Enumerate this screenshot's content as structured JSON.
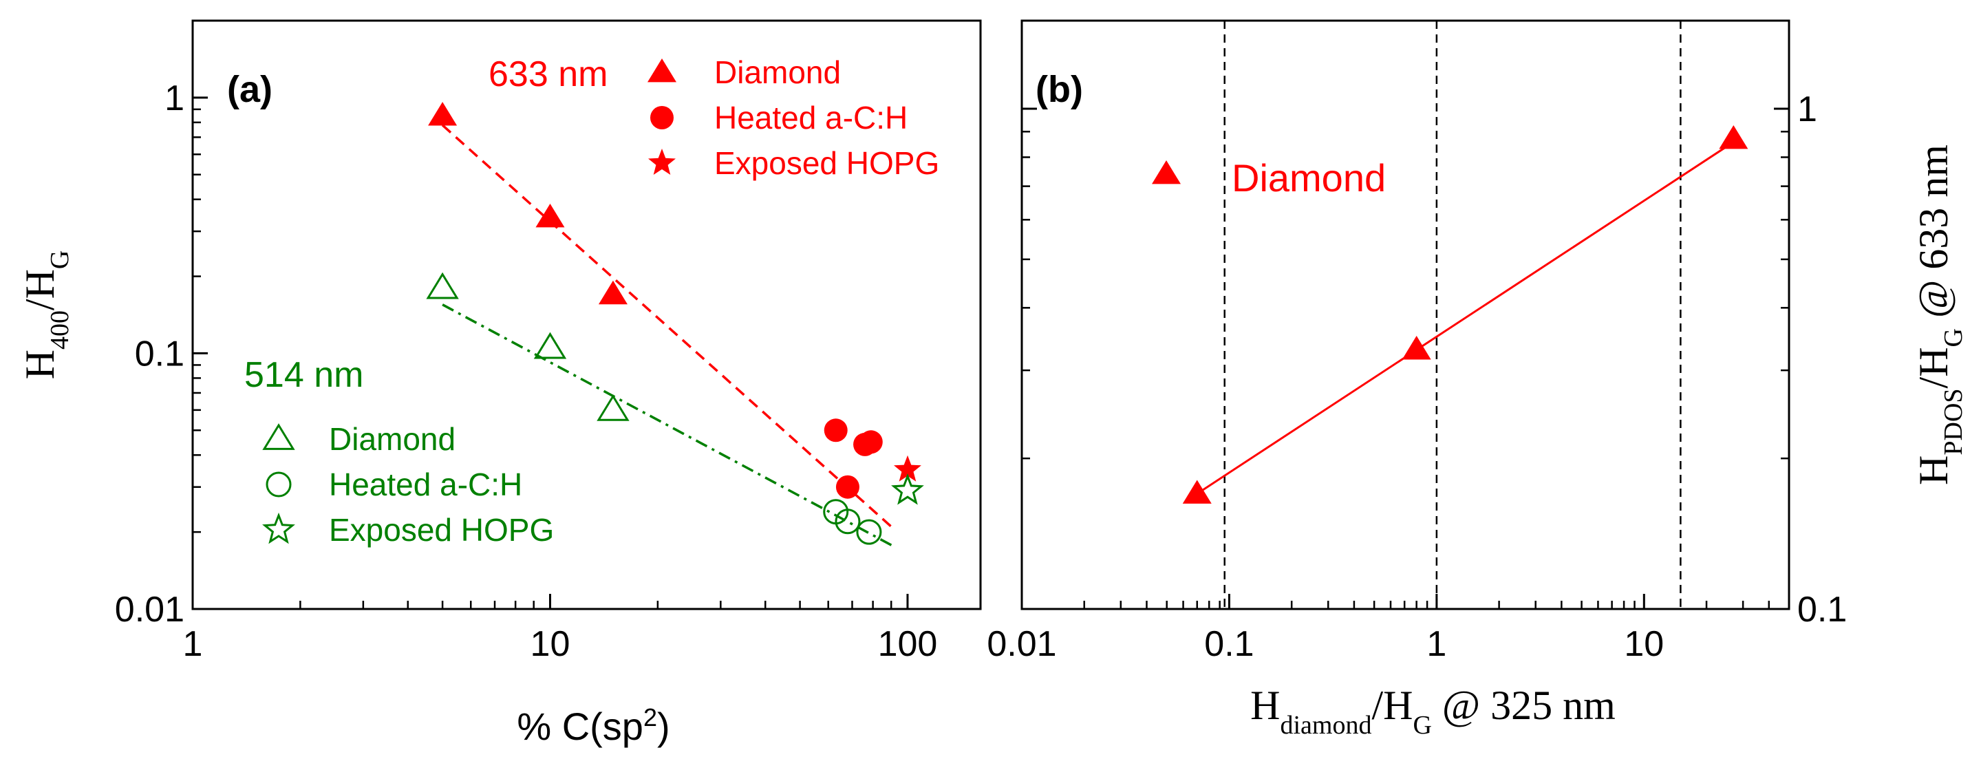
{
  "colors": {
    "red": "#ff0000",
    "green": "#008000",
    "black": "#000000"
  },
  "chart_data": [
    {
      "type": "scatter",
      "panel_label": "(a)",
      "xscale": "log",
      "yscale": "log",
      "xlim": [
        1,
        160
      ],
      "ylim": [
        0.01,
        2
      ],
      "x_ticks": [
        1,
        10,
        100
      ],
      "x_tick_labels": [
        "1",
        "10",
        "100"
      ],
      "y_ticks": [
        0.01,
        0.1,
        1
      ],
      "y_tick_labels": [
        "0.01",
        "0.1",
        "1"
      ],
      "xlabel": "% C(sp",
      "xlabel_sup": "2",
      "xlabel_end": ")",
      "ylabel": "H",
      "ylabel_sub1": "400",
      "ylabel_mid": "/H",
      "ylabel_sub2": "G",
      "group_633": "633 nm",
      "group_514": "514 nm",
      "series": [
        {
          "name": "Diamond",
          "group": "633 nm",
          "marker": "triangle-filled",
          "color": "#ff0000",
          "x": [
            5,
            10,
            15
          ],
          "y": [
            0.85,
            0.34,
            0.17
          ]
        },
        {
          "name": "Heated a-C:H",
          "group": "633 nm",
          "marker": "circle-filled",
          "color": "#ff0000",
          "x": [
            63,
            68,
            76,
            79
          ],
          "y": [
            0.05,
            0.03,
            0.044,
            0.045
          ]
        },
        {
          "name": "Exposed HOPG",
          "group": "633 nm",
          "marker": "star-filled",
          "color": "#ff0000",
          "x": [
            100
          ],
          "y": [
            0.035
          ]
        },
        {
          "name": "Diamond",
          "group": "514 nm",
          "marker": "triangle-open",
          "color": "#008000",
          "x": [
            5,
            10,
            15
          ],
          "y": [
            0.18,
            0.105,
            0.06
          ]
        },
        {
          "name": "Heated a-C:H",
          "group": "514 nm",
          "marker": "circle-open",
          "color": "#008000",
          "x": [
            63,
            68,
            78
          ],
          "y": [
            0.024,
            0.022,
            0.02
          ]
        },
        {
          "name": "Exposed HOPG",
          "group": "514 nm",
          "marker": "star-open",
          "color": "#008000",
          "x": [
            100
          ],
          "y": [
            0.029
          ]
        }
      ],
      "fit_lines": [
        {
          "style": "dashed",
          "color": "#ff0000",
          "x": [
            5,
            90
          ],
          "y": [
            0.78,
            0.021
          ]
        },
        {
          "style": "dash-dot",
          "color": "#008000",
          "x": [
            5,
            92
          ],
          "y": [
            0.155,
            0.0175
          ]
        }
      ]
    },
    {
      "type": "scatter",
      "panel_label": "(b)",
      "xscale": "log",
      "yscale": "log",
      "xlim": [
        0.01,
        50
      ],
      "ylim": [
        0.1,
        1.5
      ],
      "x_ticks": [
        0.01,
        0.1,
        1,
        10
      ],
      "x_tick_labels": [
        "0.01",
        "0.1",
        "1",
        "10"
      ],
      "y_ticks": [
        0.1,
        1
      ],
      "y_tick_labels": [
        "0.1",
        "1"
      ],
      "y_axis_side": "right",
      "xlabel": "H",
      "xlabel_sub": "diamond",
      "xlabel_end": "/H",
      "xlabel_sub2": "G",
      "xlabel_tail": " @ 325 nm",
      "ylabel": "H",
      "ylabel_sub1": "PDOS",
      "ylabel_mid": "/H",
      "ylabel_sub2": "G",
      "ylabel_tail": " @ 633 nm",
      "series": [
        {
          "name": "Diamond",
          "marker": "triangle-filled",
          "color": "#ff0000",
          "x": [
            0.07,
            0.8,
            27
          ],
          "y": [
            0.17,
            0.33,
            0.87
          ]
        }
      ],
      "fit_lines": [
        {
          "style": "solid",
          "color": "#ff0000",
          "x": [
            0.07,
            25
          ],
          "y": [
            0.17,
            0.84
          ]
        }
      ],
      "vlines": [
        0.095,
        1,
        15
      ]
    }
  ]
}
